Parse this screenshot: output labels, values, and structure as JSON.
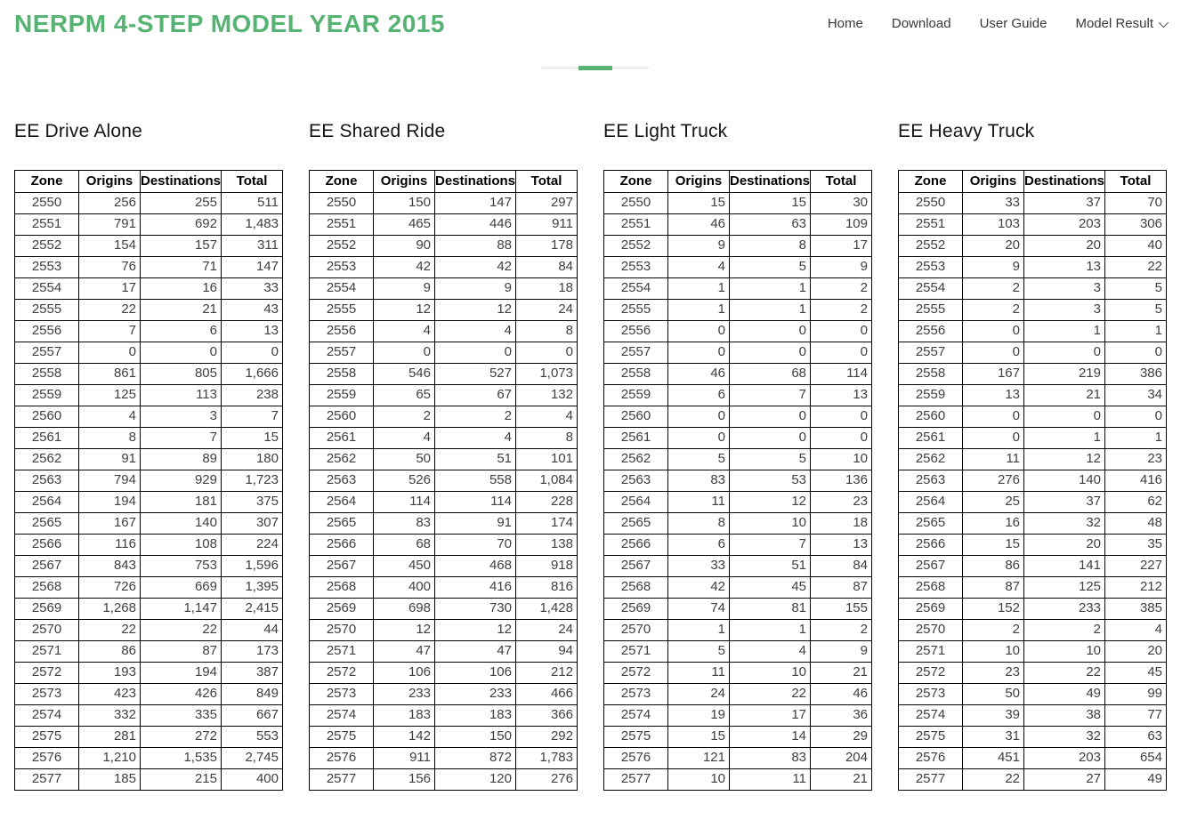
{
  "header": {
    "title": "NERPM 4-STEP MODEL YEAR 2015",
    "nav": [
      {
        "label": "Home",
        "has_dropdown": false
      },
      {
        "label": "Download",
        "has_dropdown": false
      },
      {
        "label": "User Guide",
        "has_dropdown": false
      },
      {
        "label": "Model Result",
        "has_dropdown": true
      }
    ]
  },
  "colors": {
    "accent_green": "#56b373",
    "nav_text": "#383838",
    "table_border": "#000000",
    "table_text": "#3f3f3f",
    "divider_gray": "#dddddd"
  },
  "columns": [
    "Zone",
    "Origins",
    "Destinations",
    "Total"
  ],
  "tables": [
    {
      "title": "EE Drive Alone",
      "rows": [
        [
          "2550",
          "256",
          "255",
          "511"
        ],
        [
          "2551",
          "791",
          "692",
          "1,483"
        ],
        [
          "2552",
          "154",
          "157",
          "311"
        ],
        [
          "2553",
          "76",
          "71",
          "147"
        ],
        [
          "2554",
          "17",
          "16",
          "33"
        ],
        [
          "2555",
          "22",
          "21",
          "43"
        ],
        [
          "2556",
          "7",
          "6",
          "13"
        ],
        [
          "2557",
          "0",
          "0",
          "0"
        ],
        [
          "2558",
          "861",
          "805",
          "1,666"
        ],
        [
          "2559",
          "125",
          "113",
          "238"
        ],
        [
          "2560",
          "4",
          "3",
          "7"
        ],
        [
          "2561",
          "8",
          "7",
          "15"
        ],
        [
          "2562",
          "91",
          "89",
          "180"
        ],
        [
          "2563",
          "794",
          "929",
          "1,723"
        ],
        [
          "2564",
          "194",
          "181",
          "375"
        ],
        [
          "2565",
          "167",
          "140",
          "307"
        ],
        [
          "2566",
          "116",
          "108",
          "224"
        ],
        [
          "2567",
          "843",
          "753",
          "1,596"
        ],
        [
          "2568",
          "726",
          "669",
          "1,395"
        ],
        [
          "2569",
          "1,268",
          "1,147",
          "2,415"
        ],
        [
          "2570",
          "22",
          "22",
          "44"
        ],
        [
          "2571",
          "86",
          "87",
          "173"
        ],
        [
          "2572",
          "193",
          "194",
          "387"
        ],
        [
          "2573",
          "423",
          "426",
          "849"
        ],
        [
          "2574",
          "332",
          "335",
          "667"
        ],
        [
          "2575",
          "281",
          "272",
          "553"
        ],
        [
          "2576",
          "1,210",
          "1,535",
          "2,745"
        ],
        [
          "2577",
          "185",
          "215",
          "400"
        ]
      ]
    },
    {
      "title": "EE Shared Ride",
      "rows": [
        [
          "2550",
          "150",
          "147",
          "297"
        ],
        [
          "2551",
          "465",
          "446",
          "911"
        ],
        [
          "2552",
          "90",
          "88",
          "178"
        ],
        [
          "2553",
          "42",
          "42",
          "84"
        ],
        [
          "2554",
          "9",
          "9",
          "18"
        ],
        [
          "2555",
          "12",
          "12",
          "24"
        ],
        [
          "2556",
          "4",
          "4",
          "8"
        ],
        [
          "2557",
          "0",
          "0",
          "0"
        ],
        [
          "2558",
          "546",
          "527",
          "1,073"
        ],
        [
          "2559",
          "65",
          "67",
          "132"
        ],
        [
          "2560",
          "2",
          "2",
          "4"
        ],
        [
          "2561",
          "4",
          "4",
          "8"
        ],
        [
          "2562",
          "50",
          "51",
          "101"
        ],
        [
          "2563",
          "526",
          "558",
          "1,084"
        ],
        [
          "2564",
          "114",
          "114",
          "228"
        ],
        [
          "2565",
          "83",
          "91",
          "174"
        ],
        [
          "2566",
          "68",
          "70",
          "138"
        ],
        [
          "2567",
          "450",
          "468",
          "918"
        ],
        [
          "2568",
          "400",
          "416",
          "816"
        ],
        [
          "2569",
          "698",
          "730",
          "1,428"
        ],
        [
          "2570",
          "12",
          "12",
          "24"
        ],
        [
          "2571",
          "47",
          "47",
          "94"
        ],
        [
          "2572",
          "106",
          "106",
          "212"
        ],
        [
          "2573",
          "233",
          "233",
          "466"
        ],
        [
          "2574",
          "183",
          "183",
          "366"
        ],
        [
          "2575",
          "142",
          "150",
          "292"
        ],
        [
          "2576",
          "911",
          "872",
          "1,783"
        ],
        [
          "2577",
          "156",
          "120",
          "276"
        ]
      ]
    },
    {
      "title": "EE Light Truck",
      "rows": [
        [
          "2550",
          "15",
          "15",
          "30"
        ],
        [
          "2551",
          "46",
          "63",
          "109"
        ],
        [
          "2552",
          "9",
          "8",
          "17"
        ],
        [
          "2553",
          "4",
          "5",
          "9"
        ],
        [
          "2554",
          "1",
          "1",
          "2"
        ],
        [
          "2555",
          "1",
          "1",
          "2"
        ],
        [
          "2556",
          "0",
          "0",
          "0"
        ],
        [
          "2557",
          "0",
          "0",
          "0"
        ],
        [
          "2558",
          "46",
          "68",
          "114"
        ],
        [
          "2559",
          "6",
          "7",
          "13"
        ],
        [
          "2560",
          "0",
          "0",
          "0"
        ],
        [
          "2561",
          "0",
          "0",
          "0"
        ],
        [
          "2562",
          "5",
          "5",
          "10"
        ],
        [
          "2563",
          "83",
          "53",
          "136"
        ],
        [
          "2564",
          "11",
          "12",
          "23"
        ],
        [
          "2565",
          "8",
          "10",
          "18"
        ],
        [
          "2566",
          "6",
          "7",
          "13"
        ],
        [
          "2567",
          "33",
          "51",
          "84"
        ],
        [
          "2568",
          "42",
          "45",
          "87"
        ],
        [
          "2569",
          "74",
          "81",
          "155"
        ],
        [
          "2570",
          "1",
          "1",
          "2"
        ],
        [
          "2571",
          "5",
          "4",
          "9"
        ],
        [
          "2572",
          "11",
          "10",
          "21"
        ],
        [
          "2573",
          "24",
          "22",
          "46"
        ],
        [
          "2574",
          "19",
          "17",
          "36"
        ],
        [
          "2575",
          "15",
          "14",
          "29"
        ],
        [
          "2576",
          "121",
          "83",
          "204"
        ],
        [
          "2577",
          "10",
          "11",
          "21"
        ]
      ]
    },
    {
      "title": "EE Heavy Truck",
      "rows": [
        [
          "2550",
          "33",
          "37",
          "70"
        ],
        [
          "2551",
          "103",
          "203",
          "306"
        ],
        [
          "2552",
          "20",
          "20",
          "40"
        ],
        [
          "2553",
          "9",
          "13",
          "22"
        ],
        [
          "2554",
          "2",
          "3",
          "5"
        ],
        [
          "2555",
          "2",
          "3",
          "5"
        ],
        [
          "2556",
          "0",
          "1",
          "1"
        ],
        [
          "2557",
          "0",
          "0",
          "0"
        ],
        [
          "2558",
          "167",
          "219",
          "386"
        ],
        [
          "2559",
          "13",
          "21",
          "34"
        ],
        [
          "2560",
          "0",
          "0",
          "0"
        ],
        [
          "2561",
          "0",
          "1",
          "1"
        ],
        [
          "2562",
          "11",
          "12",
          "23"
        ],
        [
          "2563",
          "276",
          "140",
          "416"
        ],
        [
          "2564",
          "25",
          "37",
          "62"
        ],
        [
          "2565",
          "16",
          "32",
          "48"
        ],
        [
          "2566",
          "15",
          "20",
          "35"
        ],
        [
          "2567",
          "86",
          "141",
          "227"
        ],
        [
          "2568",
          "87",
          "125",
          "212"
        ],
        [
          "2569",
          "152",
          "233",
          "385"
        ],
        [
          "2570",
          "2",
          "2",
          "4"
        ],
        [
          "2571",
          "10",
          "10",
          "20"
        ],
        [
          "2572",
          "23",
          "22",
          "45"
        ],
        [
          "2573",
          "50",
          "49",
          "99"
        ],
        [
          "2574",
          "39",
          "38",
          "77"
        ],
        [
          "2575",
          "31",
          "32",
          "63"
        ],
        [
          "2576",
          "451",
          "203",
          "654"
        ],
        [
          "2577",
          "22",
          "27",
          "49"
        ]
      ]
    }
  ]
}
